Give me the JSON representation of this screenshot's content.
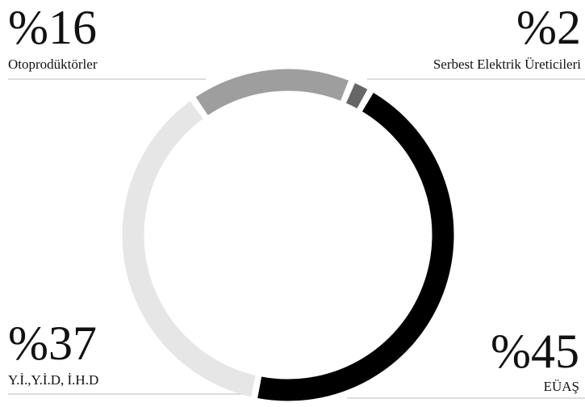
{
  "chart_data": {
    "type": "donut",
    "categories": [
      "Otoprodüktörler",
      "Serbest Elektrik Üreticileri",
      "EÜAŞ",
      "Y.İ.,Y.İ.D, İ.H.D"
    ],
    "values": [
      16,
      2,
      45,
      37
    ],
    "value_labels": [
      "%16",
      "%2",
      "%45",
      "%37"
    ],
    "colors": [
      "#9e9e9e",
      "#666666",
      "#000000",
      "#e6e6e6"
    ]
  }
}
